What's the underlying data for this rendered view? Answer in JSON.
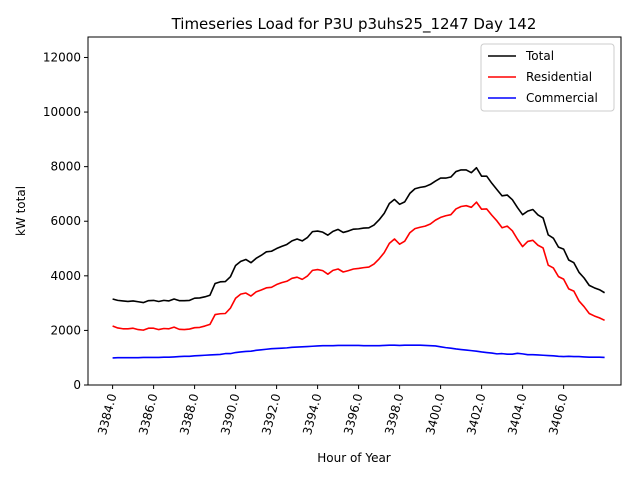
{
  "chart_data": {
    "type": "line",
    "title": "Timeseries Load for P3U p3uhs25_1247  Day 142",
    "xlabel": "Hour of Year",
    "ylabel": "kW total",
    "xlim": [
      3382.8,
      3408.8
    ],
    "ylim": [
      0,
      12750
    ],
    "xticks": [
      3384,
      3386,
      3388,
      3390,
      3392,
      3394,
      3396,
      3398,
      3400,
      3402,
      3404,
      3406
    ],
    "xtick_labels": [
      "3384.0",
      "3386.0",
      "3388.0",
      "3390.0",
      "3392.0",
      "3394.0",
      "3396.0",
      "3398.0",
      "3400.0",
      "3402.0",
      "3404.0",
      "3406.0"
    ],
    "yticks": [
      0,
      2000,
      4000,
      6000,
      8000,
      10000,
      12000
    ],
    "ytick_labels": [
      "0",
      "2000",
      "4000",
      "6000",
      "8000",
      "10000",
      "12000"
    ],
    "legend_position": "top-right",
    "x_start": 3384.0,
    "x_step": 0.25,
    "series": [
      {
        "name": "Total",
        "color": "#000000",
        "values": [
          3150,
          3100,
          3080,
          3060,
          3080,
          3050,
          3020,
          3090,
          3100,
          3060,
          3100,
          3080,
          3150,
          3090,
          3090,
          3100,
          3180,
          3190,
          3230,
          3290,
          3720,
          3780,
          3790,
          3970,
          4380,
          4530,
          4600,
          4480,
          4640,
          4750,
          4880,
          4900,
          5000,
          5080,
          5150,
          5280,
          5350,
          5280,
          5400,
          5620,
          5640,
          5600,
          5490,
          5630,
          5700,
          5590,
          5640,
          5710,
          5720,
          5750,
          5760,
          5860,
          6050,
          6290,
          6650,
          6800,
          6620,
          6710,
          7020,
          7190,
          7240,
          7270,
          7350,
          7470,
          7580,
          7580,
          7620,
          7820,
          7880,
          7880,
          7780,
          7960,
          7650,
          7650,
          7390,
          7160,
          6930,
          6960,
          6790,
          6500,
          6240,
          6370,
          6430,
          6230,
          6120,
          5500,
          5380,
          5050,
          4980,
          4580,
          4480,
          4130,
          3920,
          3650,
          3560,
          3490,
          3380
        ]
      },
      {
        "name": "Residential",
        "color": "#ff0000",
        "values": [
          2160,
          2090,
          2060,
          2060,
          2080,
          2030,
          2010,
          2080,
          2080,
          2030,
          2070,
          2060,
          2120,
          2040,
          2030,
          2050,
          2100,
          2110,
          2160,
          2220,
          2580,
          2610,
          2620,
          2820,
          3180,
          3330,
          3370,
          3260,
          3410,
          3480,
          3560,
          3580,
          3680,
          3750,
          3800,
          3910,
          3950,
          3870,
          3990,
          4200,
          4230,
          4190,
          4060,
          4200,
          4250,
          4140,
          4190,
          4250,
          4270,
          4300,
          4320,
          4430,
          4620,
          4850,
          5190,
          5350,
          5160,
          5270,
          5580,
          5730,
          5780,
          5820,
          5900,
          6040,
          6140,
          6200,
          6240,
          6450,
          6540,
          6570,
          6510,
          6700,
          6440,
          6450,
          6220,
          6010,
          5760,
          5820,
          5650,
          5340,
          5070,
          5260,
          5300,
          5120,
          5020,
          4390,
          4290,
          3970,
          3880,
          3520,
          3440,
          3080,
          2870,
          2620,
          2530,
          2460,
          2370
        ]
      },
      {
        "name": "Commercial",
        "color": "#0000ff",
        "values": [
          990,
          1000,
          1000,
          1000,
          1000,
          1000,
          1010,
          1010,
          1010,
          1010,
          1020,
          1020,
          1030,
          1040,
          1050,
          1050,
          1070,
          1080,
          1090,
          1100,
          1110,
          1120,
          1150,
          1150,
          1190,
          1210,
          1230,
          1240,
          1270,
          1290,
          1310,
          1330,
          1340,
          1350,
          1360,
          1380,
          1390,
          1400,
          1410,
          1420,
          1430,
          1440,
          1440,
          1440,
          1450,
          1450,
          1450,
          1450,
          1450,
          1440,
          1440,
          1440,
          1440,
          1450,
          1460,
          1460,
          1450,
          1460,
          1460,
          1460,
          1460,
          1450,
          1440,
          1430,
          1400,
          1370,
          1350,
          1320,
          1300,
          1280,
          1260,
          1240,
          1210,
          1190,
          1170,
          1140,
          1150,
          1130,
          1130,
          1160,
          1140,
          1110,
          1110,
          1100,
          1090,
          1080,
          1070,
          1050,
          1040,
          1050,
          1040,
          1040,
          1030,
          1020,
          1020,
          1020,
          1010
        ]
      }
    ]
  }
}
